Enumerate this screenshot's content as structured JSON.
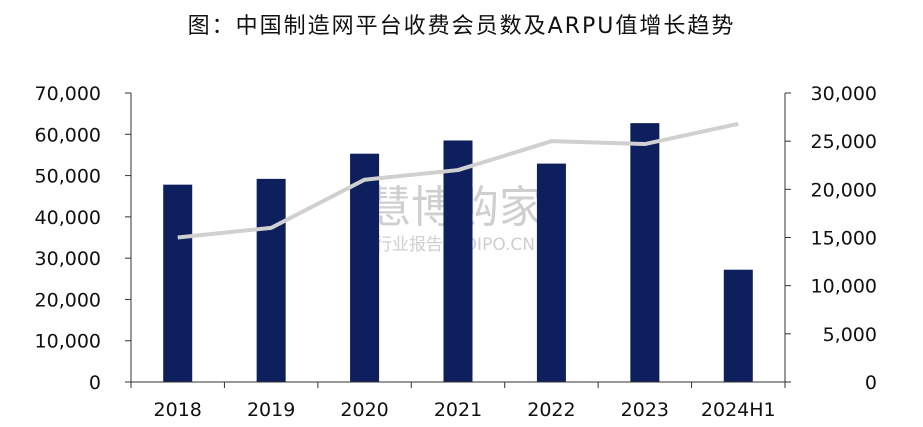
{
  "title": "图：中国制造网平台收费会员数及ARPU值增长趋势",
  "watermark": {
    "brand": "慧博购家",
    "sub": "行业报告 IPOIPO.CN"
  },
  "chart_data": {
    "type": "bar",
    "categories": [
      "2018",
      "2019",
      "2020",
      "2021",
      "2022",
      "2023",
      "2024H1"
    ],
    "series": [
      {
        "type": "bar",
        "axis": "left",
        "color": "#0d1f5c",
        "values": [
          47800,
          49200,
          55300,
          58500,
          52900,
          62700,
          27200
        ]
      },
      {
        "type": "line",
        "axis": "right",
        "color": "#d0d0d0",
        "values": [
          15000,
          16000,
          21000,
          22000,
          25000,
          24700,
          26800
        ]
      }
    ],
    "y_left": {
      "ylim": [
        0,
        70000
      ],
      "ticks": [
        "0",
        "10,000",
        "20,000",
        "30,000",
        "40,000",
        "50,000",
        "60,000",
        "70,000"
      ]
    },
    "y_right": {
      "ylim": [
        0,
        30000
      ],
      "ticks": [
        "0",
        "5,000",
        "10,000",
        "15,000",
        "20,000",
        "25,000",
        "30,000"
      ]
    },
    "grid": false,
    "legend": "none"
  }
}
